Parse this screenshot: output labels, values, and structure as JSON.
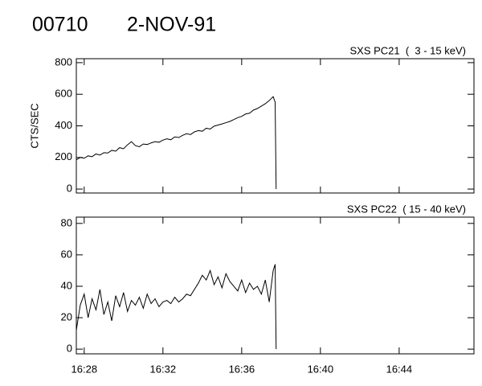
{
  "header": {
    "id": "00710",
    "date": "2-NOV-91"
  },
  "chart_data": [
    {
      "type": "line",
      "title": "SXS PC21  (  3 - 15 keV)",
      "y_label": "CTS/SEC",
      "x": [
        987.6,
        987.8,
        988.0,
        988.2,
        988.4,
        988.6,
        988.8,
        989.0,
        989.2,
        989.4,
        989.6,
        989.8,
        990.0,
        990.2,
        990.4,
        990.6,
        990.8,
        991.0,
        991.2,
        991.4,
        991.6,
        991.8,
        992.0,
        992.2,
        992.4,
        992.6,
        992.8,
        993.0,
        993.2,
        993.4,
        993.6,
        993.8,
        994.0,
        994.2,
        994.4,
        994.6,
        994.8,
        995.0,
        995.2,
        995.4,
        995.6,
        995.8,
        996.0,
        996.2,
        996.4,
        996.6,
        996.8,
        997.0,
        997.2,
        997.4,
        997.6,
        997.7,
        997.75
      ],
      "values": [
        185,
        200,
        195,
        210,
        205,
        222,
        215,
        230,
        228,
        245,
        240,
        262,
        255,
        280,
        300,
        275,
        268,
        285,
        282,
        292,
        300,
        296,
        310,
        318,
        312,
        330,
        326,
        340,
        350,
        345,
        362,
        370,
        366,
        385,
        380,
        398,
        405,
        412,
        420,
        428,
        440,
        452,
        460,
        475,
        480,
        500,
        510,
        525,
        540,
        560,
        585,
        550,
        0
      ],
      "color": "#000000",
      "xlim": [
        987.6,
        1007.8
      ],
      "xticks": [
        988,
        992,
        996,
        1000,
        1004
      ],
      "ylim": [
        -25,
        825
      ],
      "yticks": [
        0,
        200,
        400,
        600,
        800
      ]
    },
    {
      "type": "line",
      "title": "SXS PC22  ( 15 - 40 keV)",
      "x": [
        987.6,
        987.8,
        988.0,
        988.2,
        988.4,
        988.6,
        988.8,
        989.0,
        989.2,
        989.4,
        989.6,
        989.8,
        990.0,
        990.2,
        990.4,
        990.6,
        990.8,
        991.0,
        991.2,
        991.4,
        991.6,
        991.8,
        992.0,
        992.2,
        992.4,
        992.6,
        992.8,
        993.0,
        993.2,
        993.4,
        993.6,
        993.8,
        994.0,
        994.2,
        994.4,
        994.6,
        994.8,
        995.0,
        995.2,
        995.4,
        995.6,
        995.8,
        996.0,
        996.2,
        996.4,
        996.6,
        996.8,
        997.0,
        997.2,
        997.4,
        997.6,
        997.7,
        997.75
      ],
      "values": [
        12,
        28,
        35,
        20,
        32,
        25,
        38,
        22,
        30,
        18,
        34,
        27,
        36,
        24,
        31,
        28,
        33,
        26,
        35,
        29,
        32,
        27,
        30,
        31,
        29,
        33,
        30,
        32,
        35,
        34,
        38,
        42,
        47,
        44,
        50,
        41,
        46,
        39,
        48,
        43,
        40,
        37,
        44,
        36,
        42,
        38,
        40,
        35,
        44,
        30,
        50,
        54,
        0
      ],
      "color": "#000000",
      "xlim": [
        987.6,
        1007.8
      ],
      "xticks": [
        {
          "value": 988,
          "label": "16:28"
        },
        {
          "value": 992,
          "label": "16:32"
        },
        {
          "value": 996,
          "label": "16:36"
        },
        {
          "value": 1000,
          "label": "16:40"
        },
        {
          "value": 1004,
          "label": "16:44"
        }
      ],
      "ylim": [
        -3,
        84
      ],
      "yticks": [
        0,
        20,
        40,
        60,
        80
      ]
    }
  ]
}
